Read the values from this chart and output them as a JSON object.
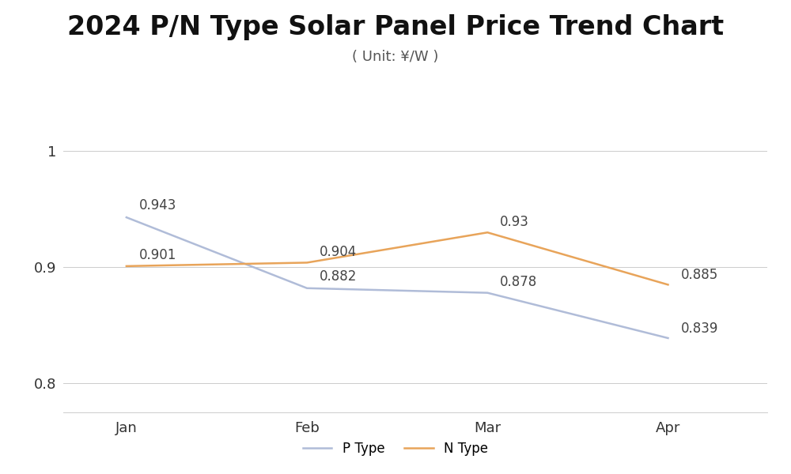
{
  "title": "2024 P/N Type Solar Panel Price Trend Chart",
  "subtitle": "( Unit: ¥/W )",
  "months": [
    "Jan",
    "Feb",
    "Mar",
    "Apr"
  ],
  "p_type": [
    0.943,
    0.882,
    0.878,
    0.839
  ],
  "n_type": [
    0.901,
    0.904,
    0.93,
    0.885
  ],
  "p_color": "#b0bcd8",
  "n_color": "#e8a45a",
  "p_label": "P Type",
  "n_label": "N Type",
  "ylim": [
    0.775,
    1.02
  ],
  "yticks": [
    0.8,
    0.9,
    1.0
  ],
  "ytick_labels": [
    "0.8",
    "0.9",
    "1"
  ],
  "background_color": "#ffffff",
  "grid_color": "#cccccc",
  "title_fontsize": 24,
  "subtitle_fontsize": 13,
  "annotation_fontsize": 12,
  "tick_fontsize": 13,
  "legend_fontsize": 12,
  "line_width": 1.8
}
